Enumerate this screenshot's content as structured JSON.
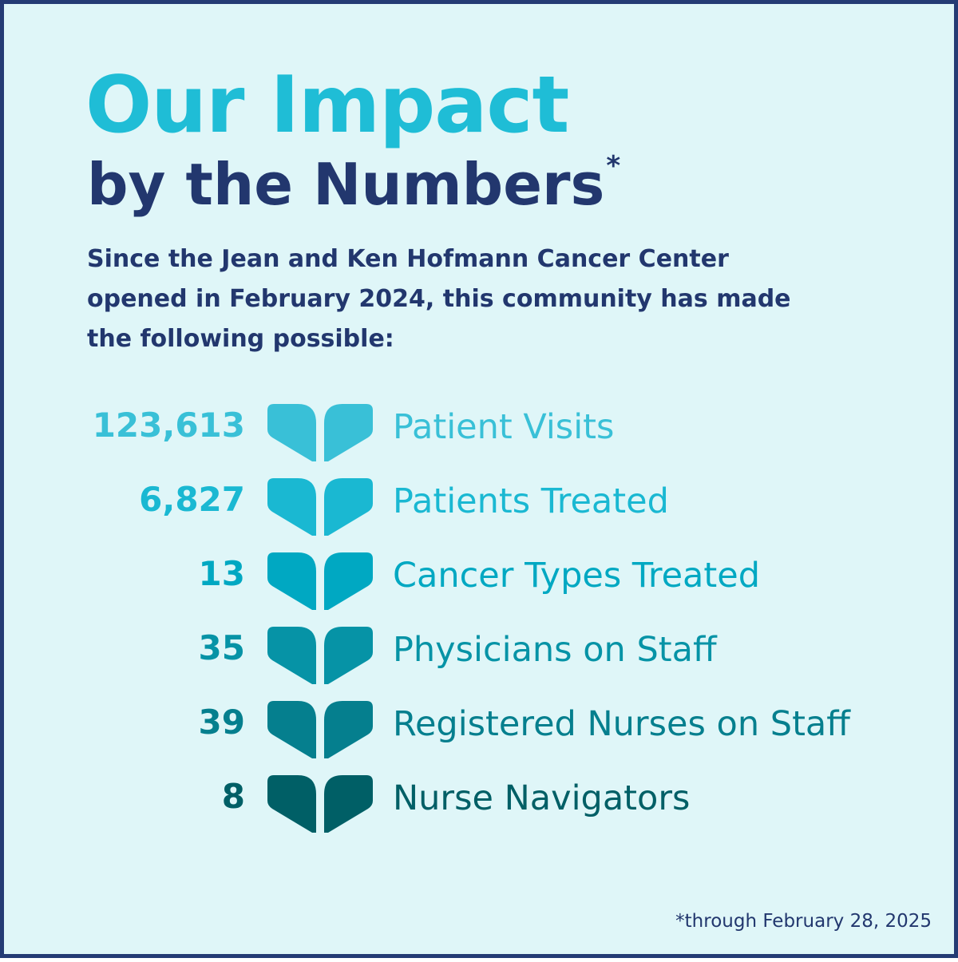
{
  "title": {
    "main": "Our Impact",
    "sub": "by the Numbers",
    "asterisk": "*"
  },
  "intro": "Since the Jean and Ken Hofmann Cancer Center opened in February 2024, this community has made the following possible:",
  "stats": [
    {
      "value": "123,613",
      "label": "Patient Visits",
      "icon": "heart-leaf-icon",
      "color": "#39c0d7"
    },
    {
      "value": "6,827",
      "label": "Patients Treated",
      "icon": "heart-leaf-icon",
      "color": "#1ab8d2"
    },
    {
      "value": "13",
      "label": "Cancer Types Treated",
      "icon": "heart-leaf-icon",
      "color": "#00a8c2"
    },
    {
      "value": "35",
      "label": "Physicians on Staff",
      "icon": "heart-leaf-icon",
      "color": "#0693a6"
    },
    {
      "value": "39",
      "label": "Registered Nurses on Staff",
      "icon": "heart-leaf-icon",
      "color": "#057f8e"
    },
    {
      "value": "8",
      "label": "Nurse Navigators",
      "icon": "heart-leaf-icon",
      "color": "#005f66"
    }
  ],
  "footnote": "*through February 28, 2025",
  "colors": {
    "navy": "#22376e",
    "border": "#243b74",
    "title_cyan": "#1fbdd6",
    "background": "#dff6f8"
  }
}
